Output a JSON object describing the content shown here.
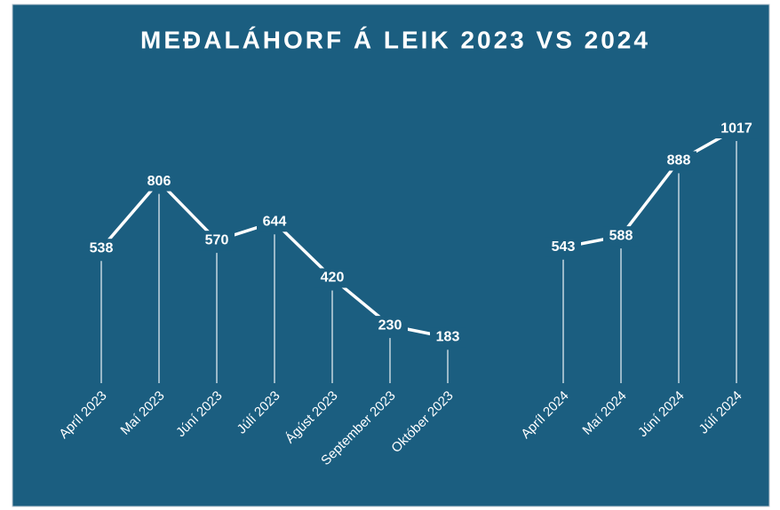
{
  "chart_data": {
    "type": "line",
    "title": "MEĐALÁHORF Á LEIK 2023 VS 2024",
    "categories": [
      "Apríl 2023",
      "Maí 2023",
      "Júní 2023",
      "Júlí 2023",
      "Ágúst 2023",
      "September 2023",
      "Október 2023",
      null,
      "Apríl 2024",
      "Maí 2024",
      "Júní 2024",
      "Júlí 2024"
    ],
    "values": [
      538,
      806,
      570,
      644,
      420,
      230,
      183,
      null,
      543,
      588,
      888,
      1017
    ],
    "color": "#ffffff",
    "background": "#1b5e80",
    "ylim": [
      0,
      1200
    ],
    "drop_lines": true
  }
}
